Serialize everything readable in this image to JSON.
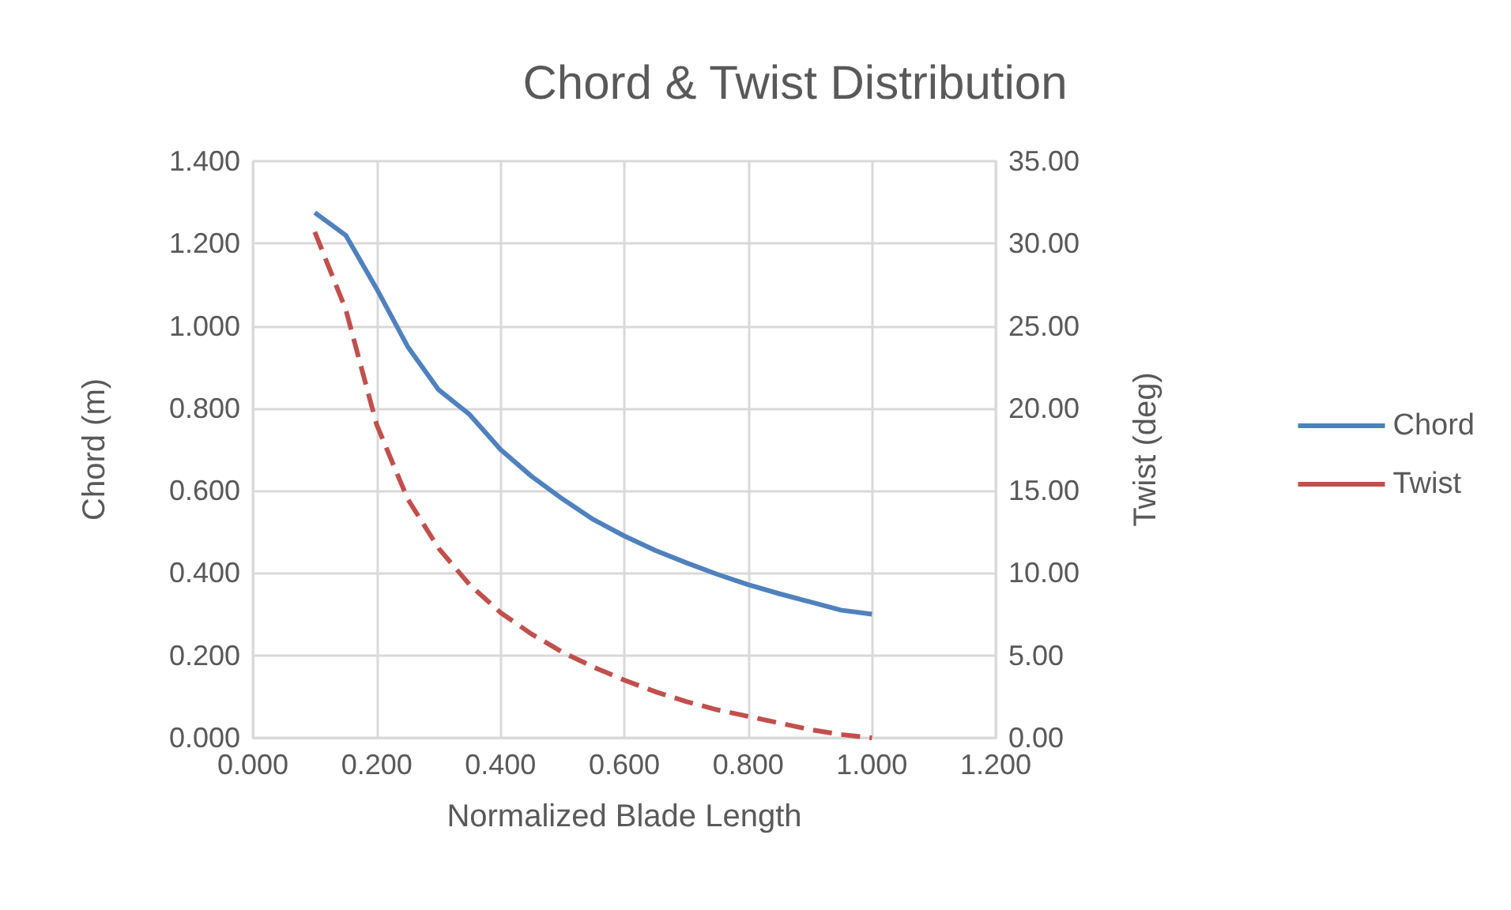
{
  "chart_data": {
    "type": "line",
    "title": "Chord & Twist Distribution",
    "xlabel": "Normalized Blade Length",
    "ylabel": "Chord (m)",
    "y2label": "Twist (deg)",
    "x": [
      0.1,
      0.15,
      0.2,
      0.25,
      0.3,
      0.35,
      0.4,
      0.45,
      0.5,
      0.55,
      0.6,
      0.65,
      0.7,
      0.75,
      0.8,
      0.85,
      0.9,
      0.95,
      1.0
    ],
    "series": [
      {
        "name": "Chord",
        "color": "#4f81bd",
        "line_style": "solid",
        "values": [
          1.275,
          1.22,
          1.09,
          0.95,
          0.845,
          0.785,
          0.7,
          0.635,
          0.58,
          0.53,
          0.49,
          0.455,
          0.425,
          0.397,
          0.372,
          0.35,
          0.33,
          0.31,
          0.3
        ]
      },
      {
        "name": "Twist",
        "color": "#c0504d",
        "line_style": "dashed",
        "axis": "y2",
        "values": [
          30.7,
          26.0,
          19.0,
          14.5,
          11.5,
          9.3,
          7.6,
          6.3,
          5.2,
          4.3,
          3.5,
          2.8,
          2.2,
          1.7,
          1.3,
          0.9,
          0.5,
          0.2,
          0.0
        ]
      }
    ],
    "xlim": [
      0,
      1.2
    ],
    "xticks": [
      {
        "value": 0,
        "label": "0.000"
      },
      {
        "value": 0.2,
        "label": "0.200"
      },
      {
        "value": 0.4,
        "label": "0.400"
      },
      {
        "value": 0.6,
        "label": "0.600"
      },
      {
        "value": 0.8,
        "label": "0.800"
      },
      {
        "value": 1.0,
        "label": "1.000"
      },
      {
        "value": 1.2,
        "label": "1.200"
      }
    ],
    "ylim": [
      0,
      1.4
    ],
    "yticks": [
      {
        "value": 0,
        "label": "0.000"
      },
      {
        "value": 0.2,
        "label": "0.200"
      },
      {
        "value": 0.4,
        "label": "0.400"
      },
      {
        "value": 0.6,
        "label": "0.600"
      },
      {
        "value": 0.8,
        "label": "0.800"
      },
      {
        "value": 1.0,
        "label": "1.000"
      },
      {
        "value": 1.2,
        "label": "1.200"
      },
      {
        "value": 1.4,
        "label": "1.400"
      }
    ],
    "y2lim": [
      0,
      35
    ],
    "y2ticks": [
      {
        "value": 0,
        "label": "0.00"
      },
      {
        "value": 5,
        "label": "5.00"
      },
      {
        "value": 10,
        "label": "10.00"
      },
      {
        "value": 15,
        "label": "15.00"
      },
      {
        "value": 20,
        "label": "20.00"
      },
      {
        "value": 25,
        "label": "25.00"
      },
      {
        "value": 30,
        "label": "30.00"
      },
      {
        "value": 35,
        "label": "35.00"
      }
    ],
    "grid": true,
    "legend": "right",
    "marker": "none"
  }
}
